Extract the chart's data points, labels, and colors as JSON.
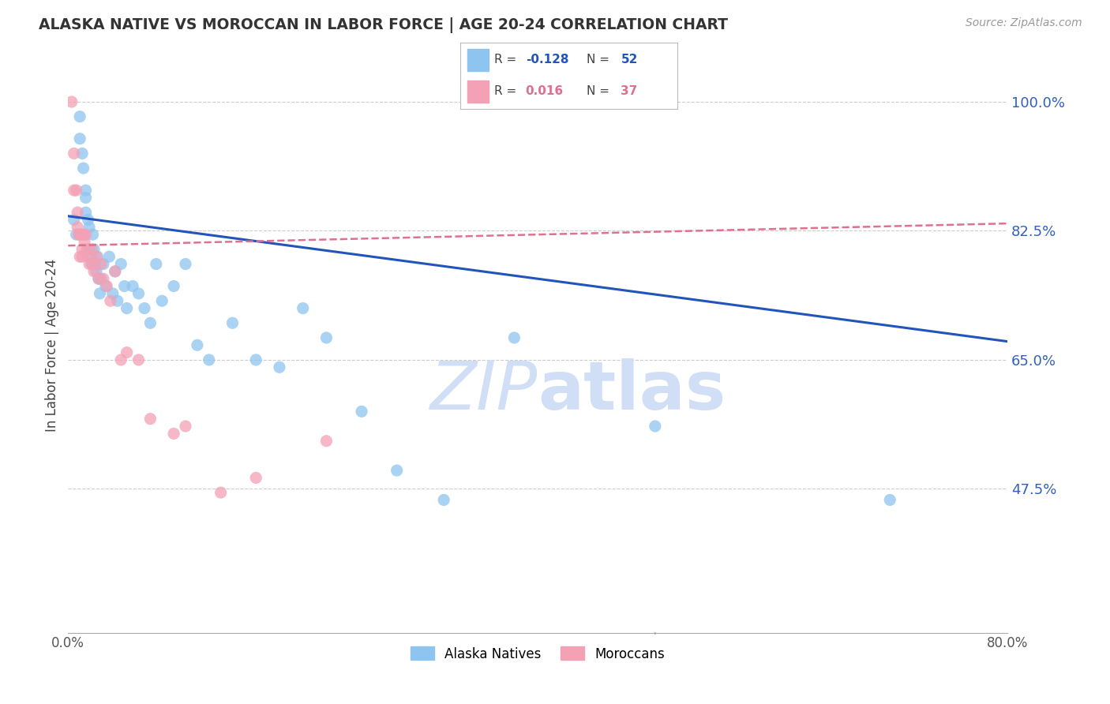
{
  "title": "ALASKA NATIVE VS MOROCCAN IN LABOR FORCE | AGE 20-24 CORRELATION CHART",
  "source": "Source: ZipAtlas.com",
  "ylabel": "In Labor Force | Age 20-24",
  "xlim": [
    0.0,
    0.8
  ],
  "ylim": [
    0.28,
    1.06
  ],
  "yticks": [
    0.475,
    0.65,
    0.825,
    1.0
  ],
  "ytick_labels": [
    "47.5%",
    "65.0%",
    "82.5%",
    "100.0%"
  ],
  "xticks": [
    0.0,
    0.1,
    0.2,
    0.3,
    0.4,
    0.5,
    0.6,
    0.7,
    0.8
  ],
  "xtick_labels": [
    "0.0%",
    "",
    "",
    "",
    "",
    "",
    "",
    "",
    "80.0%"
  ],
  "alaska_R": -0.128,
  "alaska_N": 52,
  "moroccan_R": 0.016,
  "moroccan_N": 37,
  "alaska_color": "#8ec4f0",
  "moroccan_color": "#f4a0b5",
  "trend_alaska_color": "#2255bb",
  "trend_moroccan_color": "#e07090",
  "background_color": "#ffffff",
  "grid_color": "#cccccc",
  "title_color": "#333333",
  "axis_label_color": "#444444",
  "right_tick_color": "#3060c0",
  "watermark_color": "#d0dff5",
  "alaska_x": [
    0.005,
    0.007,
    0.01,
    0.01,
    0.012,
    0.013,
    0.015,
    0.015,
    0.015,
    0.017,
    0.018,
    0.018,
    0.02,
    0.02,
    0.021,
    0.022,
    0.023,
    0.024,
    0.025,
    0.026,
    0.027,
    0.028,
    0.03,
    0.032,
    0.035,
    0.038,
    0.04,
    0.042,
    0.045,
    0.048,
    0.05,
    0.055,
    0.06,
    0.065,
    0.07,
    0.075,
    0.08,
    0.09,
    0.1,
    0.11,
    0.12,
    0.14,
    0.16,
    0.18,
    0.2,
    0.22,
    0.25,
    0.28,
    0.32,
    0.38,
    0.5,
    0.7
  ],
  "alaska_y": [
    0.84,
    0.82,
    0.98,
    0.95,
    0.93,
    0.91,
    0.88,
    0.87,
    0.85,
    0.84,
    0.83,
    0.8,
    0.79,
    0.78,
    0.82,
    0.8,
    0.78,
    0.77,
    0.79,
    0.76,
    0.74,
    0.76,
    0.78,
    0.75,
    0.79,
    0.74,
    0.77,
    0.73,
    0.78,
    0.75,
    0.72,
    0.75,
    0.74,
    0.72,
    0.7,
    0.78,
    0.73,
    0.75,
    0.78,
    0.67,
    0.65,
    0.7,
    0.65,
    0.64,
    0.72,
    0.68,
    0.58,
    0.5,
    0.46,
    0.68,
    0.56,
    0.46
  ],
  "moroccan_x": [
    0.003,
    0.005,
    0.005,
    0.007,
    0.008,
    0.008,
    0.009,
    0.01,
    0.01,
    0.011,
    0.012,
    0.012,
    0.013,
    0.014,
    0.015,
    0.016,
    0.017,
    0.018,
    0.02,
    0.021,
    0.022,
    0.024,
    0.026,
    0.028,
    0.03,
    0.033,
    0.036,
    0.04,
    0.045,
    0.05,
    0.06,
    0.07,
    0.09,
    0.1,
    0.13,
    0.16,
    0.22
  ],
  "moroccan_y": [
    1.0,
    0.93,
    0.88,
    0.88,
    0.85,
    0.83,
    0.82,
    0.82,
    0.79,
    0.82,
    0.8,
    0.79,
    0.82,
    0.81,
    0.82,
    0.8,
    0.79,
    0.78,
    0.8,
    0.78,
    0.77,
    0.79,
    0.76,
    0.78,
    0.76,
    0.75,
    0.73,
    0.77,
    0.65,
    0.66,
    0.65,
    0.57,
    0.55,
    0.56,
    0.47,
    0.49,
    0.54
  ],
  "alaska_trend_x": [
    0.0,
    0.8
  ],
  "alaska_trend_y": [
    0.845,
    0.675
  ],
  "moroccan_trend_x": [
    0.0,
    0.8
  ],
  "moroccan_trend_y": [
    0.805,
    0.835
  ]
}
